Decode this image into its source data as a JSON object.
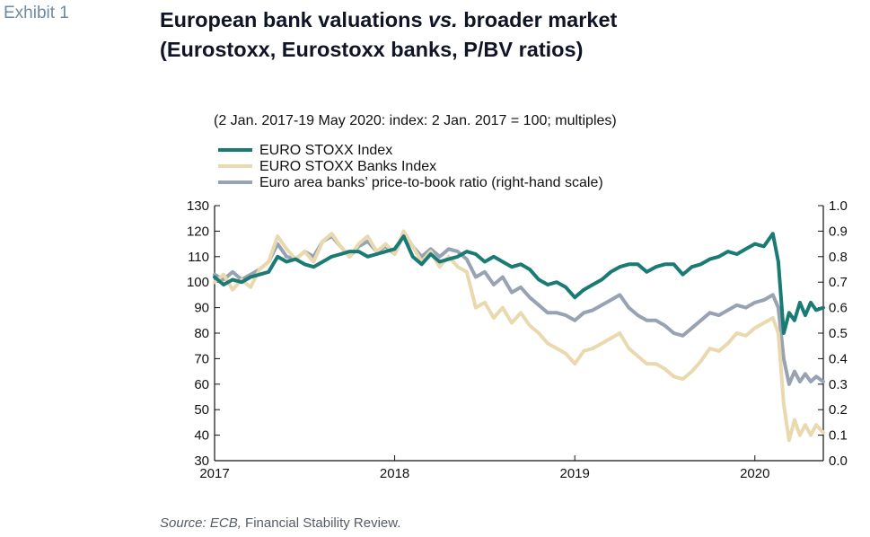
{
  "exhibit_label": "Exhibit 1",
  "title_line1_a": "European bank valuations ",
  "title_line1_b": "vs.",
  "title_line1_c": " broader market",
  "title_line2": "(Eurostoxx, Eurostoxx banks, P/BV ratios)",
  "subtitle": "(2 Jan. 2017-19 May 2020: index: 2 Jan. 2017 = 100; multiples)",
  "source_lead": "Source: ECB,",
  "source_rest": " Financial Stability Review.",
  "colors": {
    "euro_stoxx": "#1a7a74",
    "banks": "#ead9ae",
    "ptb": "#97a2b3",
    "axis": "#111111"
  },
  "chart_data": {
    "type": "line",
    "xlim": [
      2017.0,
      2020.38
    ],
    "x_ticks": [
      2017,
      2018,
      2019,
      2020
    ],
    "x_tick_labels": [
      "2017",
      "2018",
      "2019",
      "2020"
    ],
    "ylim_left": [
      30,
      130
    ],
    "y_ticks_left": [
      30,
      40,
      50,
      60,
      70,
      80,
      90,
      100,
      110,
      120,
      130
    ],
    "y_tick_labels_left": [
      "30",
      "40",
      "50",
      "60",
      "70",
      "80",
      "90",
      "100",
      "110",
      "120",
      "130"
    ],
    "ylim_right": [
      0.0,
      1.0
    ],
    "y_ticks_right": [
      0.0,
      0.1,
      0.2,
      0.3,
      0.4,
      0.5,
      0.6,
      0.7,
      0.8,
      0.9,
      1.0
    ],
    "y_tick_labels_right": [
      "0.0",
      "0.1",
      "0.2",
      "0.3",
      "0.4",
      "0.5",
      "0.6",
      "0.7",
      "0.8",
      "0.9",
      "1.0"
    ],
    "legend_position": "top-left",
    "grid": false,
    "series": [
      {
        "name": "EURO STOXX Index",
        "axis": "left",
        "x": [
          2017.0,
          2017.05,
          2017.1,
          2017.15,
          2017.2,
          2017.25,
          2017.3,
          2017.35,
          2017.4,
          2017.45,
          2017.5,
          2017.55,
          2017.6,
          2017.65,
          2017.7,
          2017.75,
          2017.8,
          2017.85,
          2017.9,
          2017.95,
          2018.0,
          2018.05,
          2018.1,
          2018.15,
          2018.2,
          2018.25,
          2018.3,
          2018.35,
          2018.4,
          2018.45,
          2018.5,
          2018.55,
          2018.6,
          2018.65,
          2018.7,
          2018.75,
          2018.8,
          2018.85,
          2018.9,
          2018.95,
          2019.0,
          2019.05,
          2019.1,
          2019.15,
          2019.2,
          2019.25,
          2019.3,
          2019.35,
          2019.4,
          2019.45,
          2019.5,
          2019.55,
          2019.6,
          2019.65,
          2019.7,
          2019.75,
          2019.8,
          2019.85,
          2019.9,
          2019.95,
          2020.0,
          2020.05,
          2020.1,
          2020.13,
          2020.16,
          2020.19,
          2020.22,
          2020.25,
          2020.28,
          2020.31,
          2020.34,
          2020.38
        ],
        "values": [
          102,
          99,
          101,
          100,
          102,
          103,
          104,
          110,
          108,
          109,
          107,
          106,
          108,
          110,
          111,
          112,
          112,
          110,
          111,
          112,
          113,
          118,
          110,
          107,
          111,
          108,
          109,
          110,
          112,
          111,
          108,
          110,
          108,
          106,
          107,
          105,
          101,
          99,
          100,
          98,
          94,
          97,
          99,
          101,
          104,
          106,
          107,
          107,
          104,
          106,
          107,
          107,
          103,
          106,
          107,
          109,
          110,
          112,
          111,
          113,
          115,
          114,
          119,
          108,
          80,
          88,
          85,
          92,
          87,
          92,
          89,
          90
        ]
      },
      {
        "name": "EURO STOXX Banks Index",
        "axis": "left",
        "x": [
          2017.0,
          2017.05,
          2017.1,
          2017.15,
          2017.2,
          2017.25,
          2017.3,
          2017.35,
          2017.4,
          2017.45,
          2017.5,
          2017.55,
          2017.6,
          2017.65,
          2017.7,
          2017.75,
          2017.8,
          2017.85,
          2017.9,
          2017.95,
          2018.0,
          2018.05,
          2018.1,
          2018.15,
          2018.2,
          2018.25,
          2018.3,
          2018.35,
          2018.4,
          2018.45,
          2018.5,
          2018.55,
          2018.6,
          2018.65,
          2018.7,
          2018.75,
          2018.8,
          2018.85,
          2018.9,
          2018.95,
          2019.0,
          2019.05,
          2019.1,
          2019.15,
          2019.2,
          2019.25,
          2019.3,
          2019.35,
          2019.4,
          2019.45,
          2019.5,
          2019.55,
          2019.6,
          2019.65,
          2019.7,
          2019.75,
          2019.8,
          2019.85,
          2019.9,
          2019.95,
          2020.0,
          2020.05,
          2020.1,
          2020.13,
          2020.16,
          2020.19,
          2020.22,
          2020.25,
          2020.28,
          2020.31,
          2020.34,
          2020.38
        ],
        "values": [
          100,
          103,
          97,
          101,
          98,
          105,
          108,
          118,
          113,
          109,
          112,
          108,
          116,
          119,
          114,
          110,
          115,
          118,
          112,
          115,
          111,
          120,
          114,
          108,
          112,
          106,
          110,
          106,
          104,
          90,
          92,
          86,
          90,
          84,
          88,
          83,
          80,
          76,
          74,
          72,
          68,
          73,
          74,
          76,
          78,
          80,
          74,
          71,
          68,
          68,
          66,
          63,
          62,
          65,
          69,
          74,
          73,
          76,
          80,
          79,
          82,
          84,
          86,
          80,
          52,
          38,
          46,
          40,
          44,
          40,
          44,
          41
        ]
      },
      {
        "name": "Euro area banks’ price-to-book ratio (right-hand scale)",
        "axis": "right",
        "x": [
          2017.0,
          2017.05,
          2017.1,
          2017.15,
          2017.2,
          2017.25,
          2017.3,
          2017.35,
          2017.4,
          2017.45,
          2017.5,
          2017.55,
          2017.6,
          2017.65,
          2017.7,
          2017.75,
          2017.8,
          2017.85,
          2017.9,
          2017.95,
          2018.0,
          2018.05,
          2018.1,
          2018.15,
          2018.2,
          2018.25,
          2018.3,
          2018.35,
          2018.4,
          2018.45,
          2018.5,
          2018.55,
          2018.6,
          2018.65,
          2018.7,
          2018.75,
          2018.8,
          2018.85,
          2018.9,
          2018.95,
          2019.0,
          2019.05,
          2019.1,
          2019.15,
          2019.2,
          2019.25,
          2019.3,
          2019.35,
          2019.4,
          2019.45,
          2019.5,
          2019.55,
          2019.6,
          2019.65,
          2019.7,
          2019.75,
          2019.8,
          2019.85,
          2019.9,
          2019.95,
          2020.0,
          2020.05,
          2020.1,
          2020.13,
          2020.16,
          2020.19,
          2020.22,
          2020.25,
          2020.28,
          2020.31,
          2020.34,
          2020.38
        ],
        "values": [
          0.73,
          0.71,
          0.74,
          0.71,
          0.73,
          0.75,
          0.78,
          0.85,
          0.8,
          0.79,
          0.82,
          0.8,
          0.86,
          0.88,
          0.84,
          0.8,
          0.84,
          0.86,
          0.82,
          0.84,
          0.81,
          0.89,
          0.84,
          0.8,
          0.83,
          0.8,
          0.83,
          0.82,
          0.79,
          0.72,
          0.74,
          0.69,
          0.72,
          0.66,
          0.68,
          0.64,
          0.61,
          0.58,
          0.58,
          0.57,
          0.55,
          0.58,
          0.59,
          0.61,
          0.63,
          0.65,
          0.6,
          0.57,
          0.55,
          0.55,
          0.53,
          0.5,
          0.49,
          0.52,
          0.55,
          0.58,
          0.57,
          0.59,
          0.61,
          0.6,
          0.62,
          0.63,
          0.65,
          0.6,
          0.4,
          0.3,
          0.35,
          0.31,
          0.34,
          0.31,
          0.33,
          0.31
        ]
      }
    ]
  }
}
